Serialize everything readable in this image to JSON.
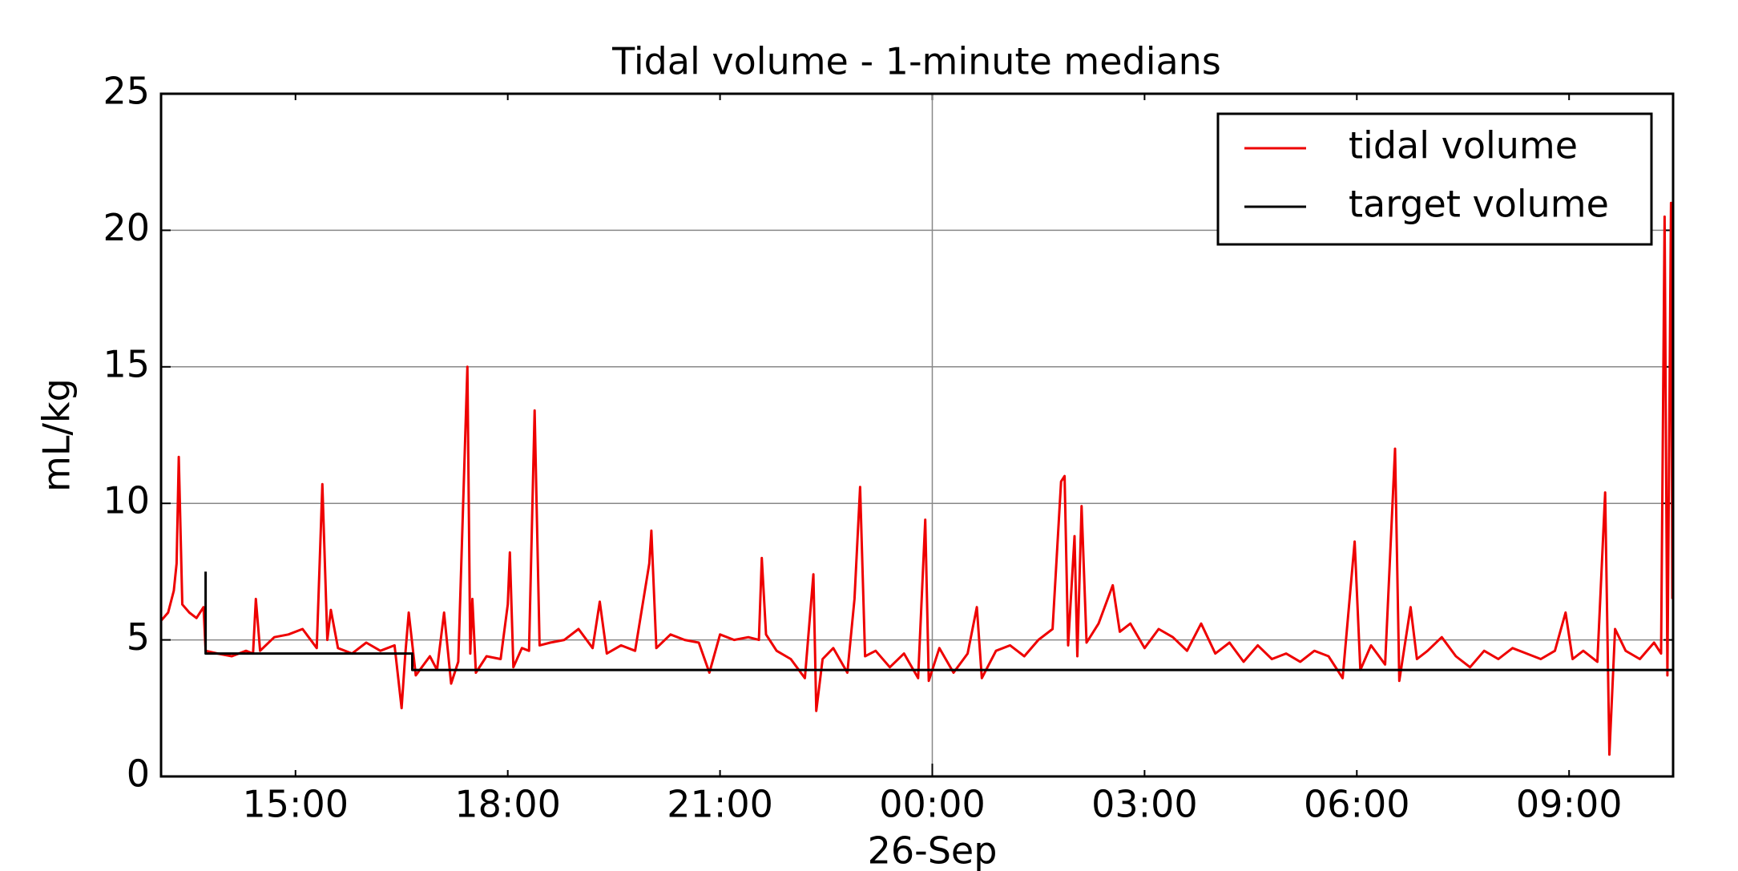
{
  "chart_data": {
    "type": "line",
    "title": "Tidal volume -  1-minute medians",
    "ylabel": "mL/kg",
    "xlim": [
      13.1,
      34.47
    ],
    "ylim": [
      0,
      25
    ],
    "yticks": [
      0,
      5,
      10,
      15,
      20,
      25
    ],
    "xticks": [
      {
        "value": 15,
        "label": "15:00"
      },
      {
        "value": 18,
        "label": "18:00"
      },
      {
        "value": 21,
        "label": "21:00"
      },
      {
        "value": 24,
        "label": "00:00"
      },
      {
        "value": 27,
        "label": "03:00"
      },
      {
        "value": 30,
        "label": "06:00"
      },
      {
        "value": 33,
        "label": "09:00"
      }
    ],
    "x_major_ticks": [
      {
        "value": 24,
        "label": "26-Sep"
      }
    ],
    "grid": true,
    "legend": "upper right",
    "series": [
      {
        "name": "tidal volume",
        "color": "#ee0000",
        "x": [
          13.1,
          13.2,
          13.28,
          13.32,
          13.35,
          13.4,
          13.5,
          13.6,
          13.7,
          13.73,
          13.9,
          14.1,
          14.3,
          14.4,
          14.44,
          14.5,
          14.7,
          14.9,
          15.1,
          15.3,
          15.38,
          15.45,
          15.5,
          15.6,
          15.8,
          16.0,
          16.2,
          16.4,
          16.5,
          16.55,
          16.6,
          16.7,
          16.9,
          17.0,
          17.1,
          17.2,
          17.3,
          17.43,
          17.47,
          17.5,
          17.55,
          17.7,
          17.9,
          18.0,
          18.03,
          18.08,
          18.2,
          18.3,
          18.38,
          18.45,
          18.6,
          18.8,
          19.0,
          19.2,
          19.3,
          19.4,
          19.6,
          19.8,
          20.0,
          20.03,
          20.1,
          20.3,
          20.5,
          20.7,
          20.85,
          21.0,
          21.2,
          21.4,
          21.55,
          21.59,
          21.65,
          21.8,
          22.0,
          22.2,
          22.32,
          22.36,
          22.45,
          22.6,
          22.8,
          22.9,
          22.98,
          23.05,
          23.2,
          23.4,
          23.6,
          23.8,
          23.9,
          23.95,
          24.1,
          24.3,
          24.5,
          24.63,
          24.7,
          24.9,
          25.1,
          25.3,
          25.5,
          25.7,
          25.82,
          25.87,
          25.92,
          26.01,
          26.05,
          26.11,
          26.18,
          26.35,
          26.55,
          26.65,
          26.8,
          27.0,
          27.2,
          27.4,
          27.6,
          27.8,
          28.0,
          28.2,
          28.4,
          28.6,
          28.8,
          29.0,
          29.2,
          29.4,
          29.6,
          29.8,
          29.97,
          30.05,
          30.2,
          30.4,
          30.54,
          30.6,
          30.76,
          30.85,
          31.0,
          31.2,
          31.4,
          31.6,
          31.8,
          32.0,
          32.2,
          32.4,
          32.6,
          32.8,
          32.95,
          33.05,
          33.2,
          33.4,
          33.51,
          33.57,
          33.65,
          33.8,
          34.0,
          34.2,
          34.3,
          34.35,
          34.39,
          34.44,
          34.46
        ],
        "values": [
          5.7,
          6.0,
          6.8,
          7.8,
          11.7,
          6.3,
          6.0,
          5.8,
          6.2,
          4.6,
          4.5,
          4.4,
          4.6,
          4.5,
          6.5,
          4.6,
          5.1,
          5.2,
          5.4,
          4.7,
          10.7,
          5.0,
          6.1,
          4.7,
          4.5,
          4.9,
          4.6,
          4.8,
          2.5,
          4.4,
          6.0,
          3.7,
          4.4,
          3.9,
          6.0,
          3.4,
          4.2,
          15.0,
          4.5,
          6.5,
          3.8,
          4.4,
          4.3,
          6.3,
          8.2,
          4.0,
          4.7,
          4.6,
          13.4,
          4.8,
          4.9,
          5.0,
          5.4,
          4.7,
          6.4,
          4.5,
          4.8,
          4.6,
          7.8,
          9.0,
          4.7,
          5.2,
          5.0,
          4.9,
          3.8,
          5.2,
          5.0,
          5.1,
          5.0,
          8.0,
          5.2,
          4.6,
          4.3,
          3.6,
          7.4,
          2.4,
          4.3,
          4.7,
          3.8,
          6.5,
          10.6,
          4.4,
          4.6,
          4.0,
          4.5,
          3.6,
          9.4,
          3.5,
          4.7,
          3.8,
          4.5,
          6.2,
          3.6,
          4.6,
          4.8,
          4.4,
          5.0,
          5.4,
          10.8,
          11.0,
          4.8,
          8.8,
          4.4,
          9.9,
          4.9,
          5.6,
          7.0,
          5.3,
          5.6,
          4.7,
          5.4,
          5.1,
          4.6,
          5.6,
          4.5,
          4.9,
          4.2,
          4.8,
          4.3,
          4.5,
          4.2,
          4.6,
          4.4,
          3.6,
          8.6,
          3.9,
          4.8,
          4.1,
          12.0,
          3.5,
          6.2,
          4.3,
          4.6,
          5.1,
          4.4,
          4.0,
          4.6,
          4.3,
          4.7,
          4.5,
          4.3,
          4.6,
          6.0,
          4.3,
          4.6,
          4.2,
          10.4,
          0.8,
          5.4,
          4.6,
          4.3,
          4.9,
          4.5,
          20.5,
          3.7,
          21.0,
          6.5
        ]
      },
      {
        "name": "target volume",
        "color": "#000000",
        "x": [
          13.73,
          13.73,
          16.65,
          16.65,
          34.47
        ],
        "values": [
          7.5,
          4.5,
          4.5,
          3.9,
          3.9
        ]
      }
    ]
  }
}
